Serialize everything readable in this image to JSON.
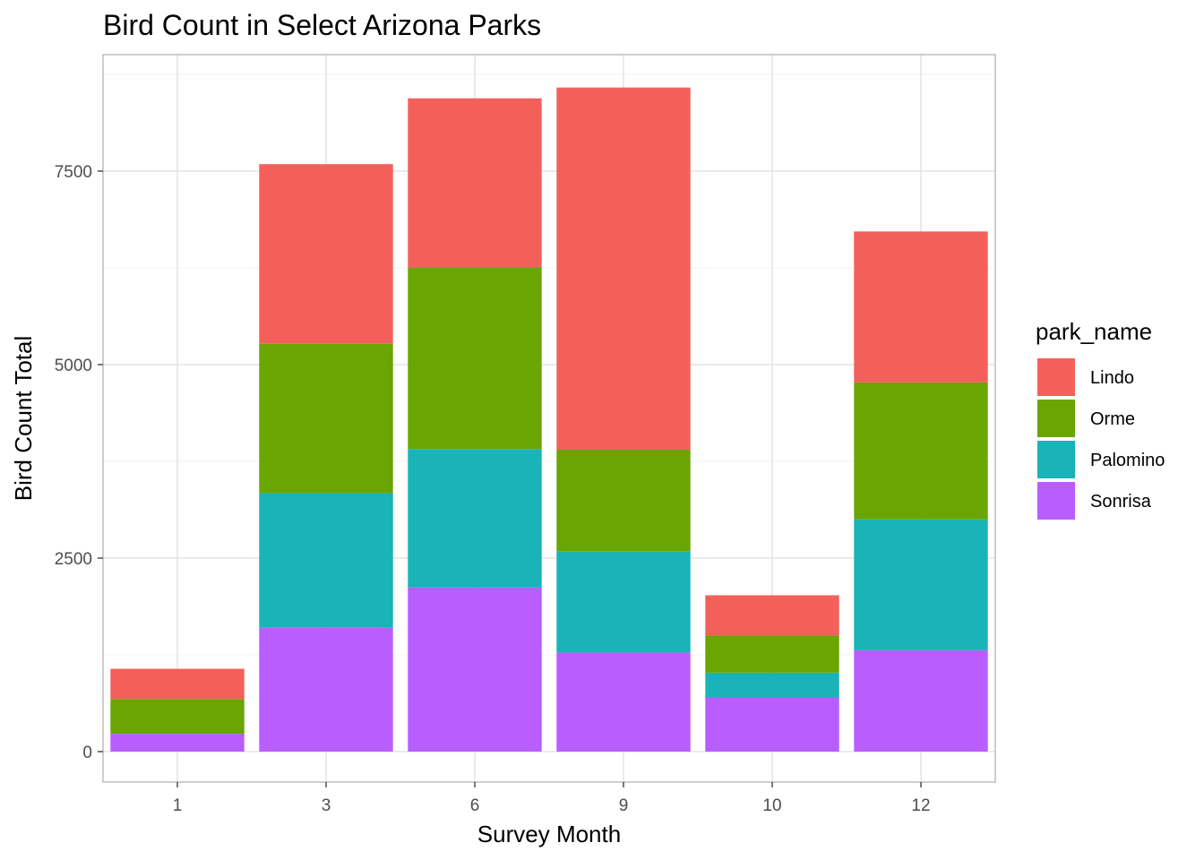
{
  "chart_data": {
    "type": "bar",
    "stacked": true,
    "title": "Bird Count in Select Arizona Parks",
    "xlabel": "Survey Month",
    "ylabel": "Bird Count Total",
    "categories": [
      "1",
      "3",
      "6",
      "9",
      "10",
      "12"
    ],
    "yticks": [
      0,
      2500,
      5000,
      7500
    ],
    "ytick_labels": [
      "0",
      "2500",
      "5000",
      "7500"
    ],
    "ylim": [
      -400,
      8950
    ],
    "grid": true,
    "legend": {
      "title": "park_name",
      "position": "right"
    },
    "series": [
      {
        "name": "Sonrisa",
        "color": "#B95DFF",
        "values": [
          230,
          1600,
          2120,
          1280,
          700,
          1310
        ]
      },
      {
        "name": "Palomino",
        "color": "#19B3B8",
        "values": [
          0,
          1740,
          1790,
          1310,
          320,
          1690
        ]
      },
      {
        "name": "Orme",
        "color": "#6AA502",
        "values": [
          450,
          1930,
          2340,
          1310,
          480,
          1770
        ]
      },
      {
        "name": "Lindo",
        "color": "#F3605C",
        "values": [
          390,
          2320,
          2190,
          4680,
          520,
          1950
        ]
      }
    ],
    "legend_order": [
      "Lindo",
      "Orme",
      "Palomino",
      "Sonrisa"
    ]
  }
}
